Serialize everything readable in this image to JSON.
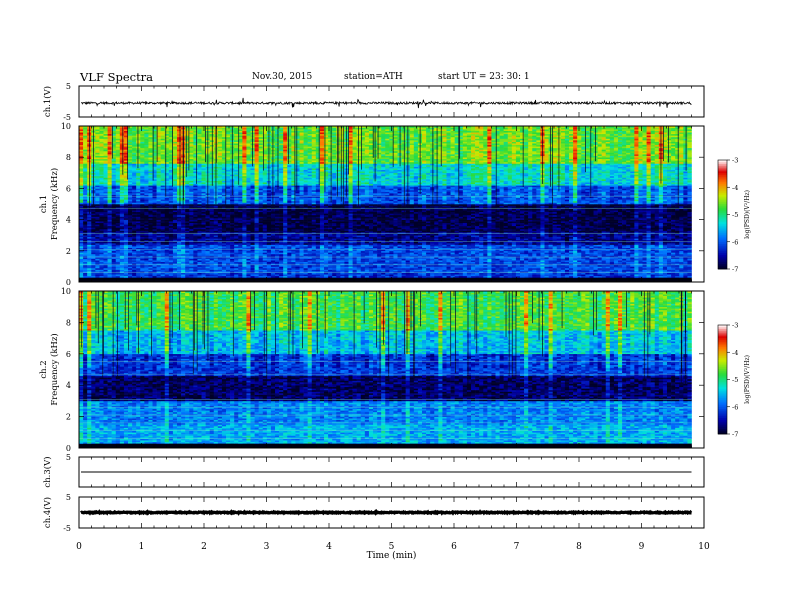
{
  "header": {
    "title": "VLF  Spectra",
    "date": "Nov.30, 2015",
    "station": "station=ATH",
    "start": "start  UT  =   23: 30: 1"
  },
  "chart_data": [
    {
      "type": "line",
      "id": "ch1-waveform",
      "ylabel": "ch.1(V)",
      "ylim": [
        -5,
        5
      ],
      "ytick_labels": [
        "5",
        "-5"
      ],
      "baseline": -0.5,
      "noise_amplitude": 0.35
    },
    {
      "type": "heatmap",
      "id": "ch1-spectrogram",
      "ylabel": "ch.1 Frequency (kHz)",
      "ylim": [
        0,
        10
      ],
      "ytick_labels": [
        "0",
        "2",
        "4",
        "6",
        "8",
        "10"
      ],
      "colorbar": {
        "label": "log(PSD)(V²/Hz)",
        "range": [
          -7,
          -3
        ],
        "ticks": [
          "-3",
          "-4",
          "-5",
          "-6",
          "-7"
        ]
      },
      "bands_khz": [
        {
          "from": 0.0,
          "to": 0.3,
          "level": -7.0
        },
        {
          "from": 0.3,
          "to": 0.6,
          "level": -6.2
        },
        {
          "from": 0.6,
          "to": 2.4,
          "level": -6.1
        },
        {
          "from": 2.4,
          "to": 3.2,
          "level": -6.6
        },
        {
          "from": 3.2,
          "to": 5.0,
          "level": -6.9
        },
        {
          "from": 5.0,
          "to": 6.2,
          "level": -6.0
        },
        {
          "from": 6.2,
          "to": 7.6,
          "level": -5.3
        },
        {
          "from": 7.6,
          "to": 10.0,
          "level": -4.6
        }
      ]
    },
    {
      "type": "heatmap",
      "id": "ch2-spectrogram",
      "ylabel": "ch.2 Frequency (kHz)",
      "ylim": [
        0,
        10
      ],
      "ytick_labels": [
        "0",
        "2",
        "4",
        "6",
        "8",
        "10"
      ],
      "colorbar": {
        "label": "log(PSD)(V²/Hz)",
        "range": [
          -7,
          -3
        ],
        "ticks": [
          "-3",
          "-4",
          "-5",
          "-6",
          "-7"
        ]
      },
      "bands_khz": [
        {
          "from": 0.0,
          "to": 0.3,
          "level": -7.0
        },
        {
          "from": 0.3,
          "to": 1.5,
          "level": -5.6
        },
        {
          "from": 1.5,
          "to": 3.0,
          "level": -5.8
        },
        {
          "from": 3.0,
          "to": 4.6,
          "level": -6.8
        },
        {
          "from": 4.6,
          "to": 6.0,
          "level": -6.2
        },
        {
          "from": 6.0,
          "to": 7.5,
          "level": -5.5
        },
        {
          "from": 7.5,
          "to": 10.0,
          "level": -4.8
        }
      ]
    },
    {
      "type": "line",
      "id": "ch3-waveform",
      "ylabel": "ch.3(V)",
      "ylim": [
        -5,
        5
      ],
      "ytick_labels": [
        "5"
      ],
      "baseline": 0,
      "noise_amplitude": 0
    },
    {
      "type": "line",
      "id": "ch4-waveform",
      "ylabel": "ch.4(V)",
      "ylim": [
        -5,
        5
      ],
      "ytick_labels": [
        "5",
        "-5"
      ],
      "baseline": 0,
      "noise_amplitude": 0.15
    }
  ],
  "x_axis": {
    "label": "Time  (min)",
    "range": [
      0,
      10
    ],
    "data_end": 9.8,
    "tick_labels": [
      "0",
      "1",
      "2",
      "3",
      "4",
      "5",
      "6",
      "7",
      "8",
      "9",
      "10"
    ]
  }
}
